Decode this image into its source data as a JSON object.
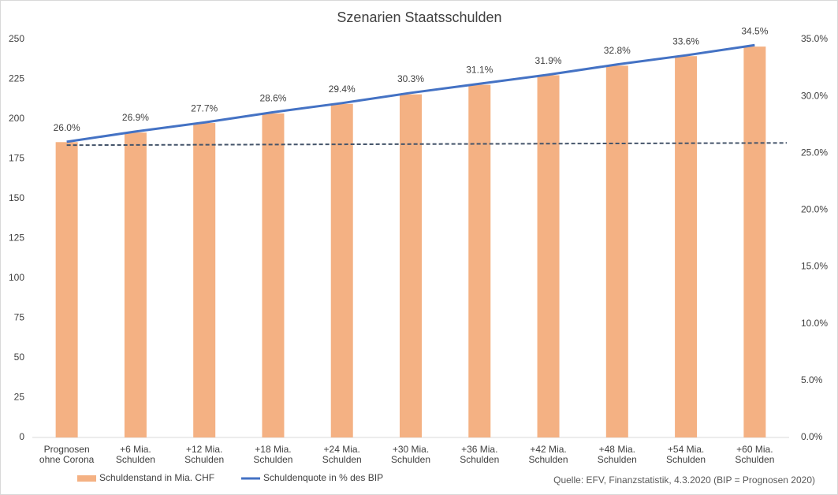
{
  "chart_data": {
    "type": "bar_line",
    "title": "Szenarien Staatsschulden",
    "source": "Quelle: EFV, Finanzstatistik, 4.3.2020 (BIP = Prognosen 2020)",
    "categories": [
      "Prognosen ohne Corona",
      "+6 Mia. Schulden",
      "+12 Mia. Schulden",
      "+18 Mia. Schulden",
      "+24 Mia. Schulden",
      "+30 Mia. Schulden",
      "+36 Mia. Schulden",
      "+42 Mia. Schulden",
      "+48 Mia. Schulden",
      "+54 Mia. Schulden",
      "+60 Mia. Schulden"
    ],
    "series": [
      {
        "name": "Schuldenstand in Mia. CHF",
        "type": "bar",
        "color": "#f4b183",
        "values": [
          185.5,
          191.5,
          197.5,
          203.5,
          209.5,
          215.5,
          221.5,
          227.5,
          233.5,
          239.5,
          245.5
        ]
      },
      {
        "name": "Schuldenquote in % des BIP",
        "type": "line",
        "axis": "y2",
        "color": "#4472c4",
        "values": [
          26.0,
          26.9,
          27.7,
          28.6,
          29.4,
          30.3,
          31.1,
          31.9,
          32.8,
          33.6,
          34.5
        ],
        "value_labels": [
          "26.0%",
          "26.9%",
          "27.7%",
          "28.6%",
          "29.4%",
          "30.3%",
          "31.1%",
          "31.9%",
          "32.8%",
          "33.6%",
          "34.5%"
        ]
      }
    ],
    "reference_line": {
      "axis": "y2",
      "color": "#44546a",
      "values": [
        25.7,
        25.9
      ]
    },
    "ylim": [
      0,
      250
    ],
    "yticks": [
      0,
      25,
      50,
      75,
      100,
      125,
      150,
      175,
      200,
      225,
      250
    ],
    "y2lim": [
      0,
      35
    ],
    "y2ticks": [
      {
        "value": 0,
        "label": "0.0%"
      },
      {
        "value": 5,
        "label": "5.0%"
      },
      {
        "value": 10,
        "label": "10.0%"
      },
      {
        "value": 15,
        "label": "15.0%"
      },
      {
        "value": 20,
        "label": "20.0%"
      },
      {
        "value": 25,
        "label": "25.0%"
      },
      {
        "value": 30,
        "label": "30.0%"
      },
      {
        "value": 35,
        "label": "35.0%"
      }
    ],
    "grid": false,
    "legend": "bottom"
  }
}
